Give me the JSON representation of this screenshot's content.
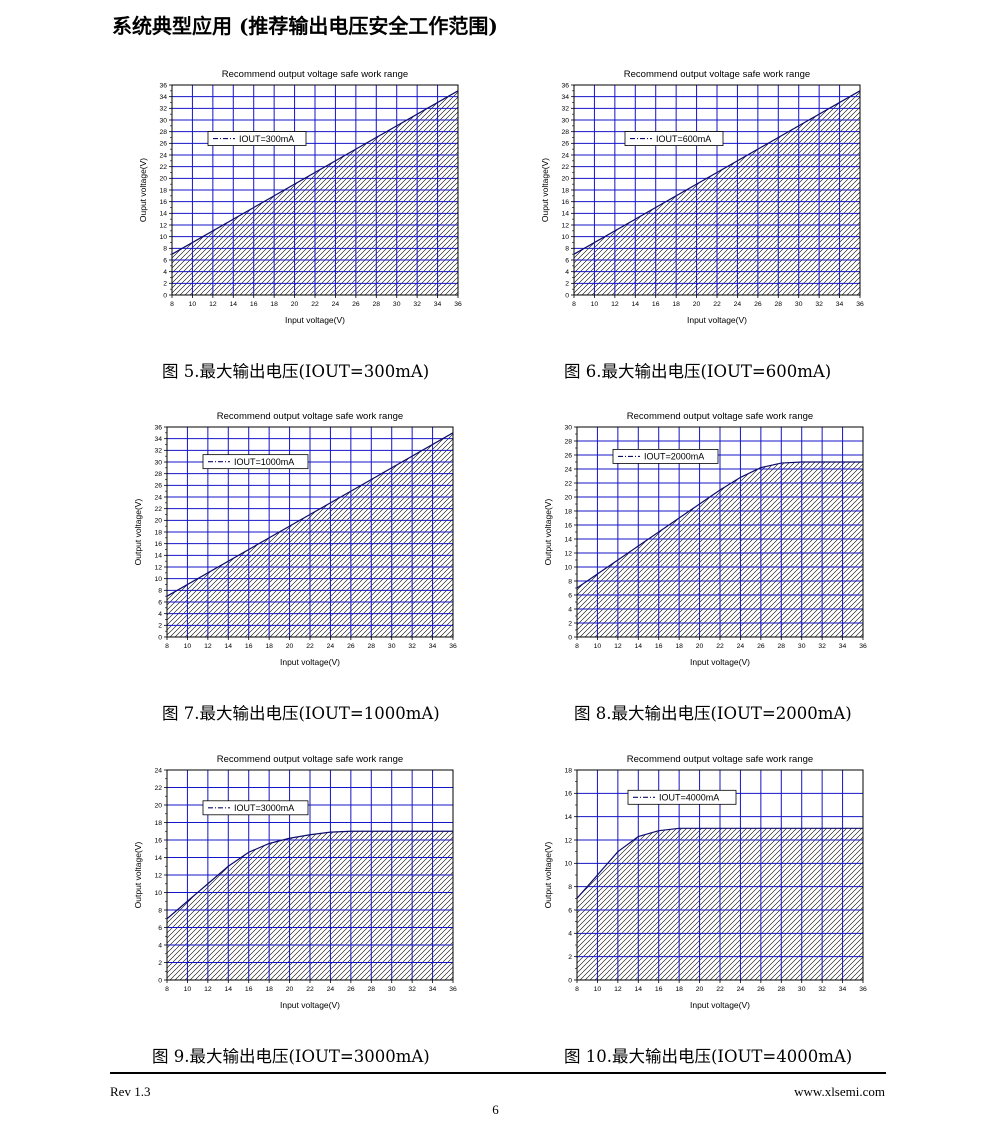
{
  "heading": "系统典型应用 (推荐输出电压安全工作范围)",
  "footer": {
    "rev": "Rev 1.3",
    "site": "www.xlsemi.com",
    "page": "6"
  },
  "chart_data": [
    {
      "type": "area",
      "title": "Recommend output voltage safe work range",
      "xlabel": "Input voltage(V)",
      "ylabel": "Ouput voltage(V)",
      "xlim": [
        8,
        36
      ],
      "ylim": [
        0,
        36
      ],
      "xticks": [
        8,
        10,
        12,
        14,
        16,
        18,
        20,
        22,
        24,
        26,
        28,
        30,
        32,
        34,
        36
      ],
      "yticks": [
        0,
        2,
        4,
        6,
        8,
        10,
        12,
        14,
        16,
        18,
        20,
        22,
        24,
        26,
        28,
        30,
        32,
        34,
        36
      ],
      "grid": true,
      "legend_position": "upper-left",
      "series": [
        {
          "name": "IOUT=300mA",
          "x": [
            8,
            36
          ],
          "y": [
            7,
            35
          ]
        }
      ],
      "caption": "图 5.最大输出电压(IOUT=300mA)"
    },
    {
      "type": "area",
      "title": "Recommend output voltage safe work range",
      "xlabel": "Input voltage(V)",
      "ylabel": "Ouput voltage(V)",
      "xlim": [
        8,
        36
      ],
      "ylim": [
        0,
        36
      ],
      "xticks": [
        8,
        10,
        12,
        14,
        16,
        18,
        20,
        22,
        24,
        26,
        28,
        30,
        32,
        34,
        36
      ],
      "yticks": [
        0,
        2,
        4,
        6,
        8,
        10,
        12,
        14,
        16,
        18,
        20,
        22,
        24,
        26,
        28,
        30,
        32,
        34,
        36
      ],
      "grid": true,
      "legend_position": "upper-center",
      "series": [
        {
          "name": "IOUT=600mA",
          "x": [
            8,
            36
          ],
          "y": [
            7,
            35
          ]
        }
      ],
      "caption": "图 6.最大输出电压(IOUT=600mA)"
    },
    {
      "type": "area",
      "title": "Recommend output voltage safe work range",
      "xlabel": "Input voltage(V)",
      "ylabel": "Output voltage(V)",
      "xlim": [
        8,
        36
      ],
      "ylim": [
        0,
        36
      ],
      "xticks": [
        8,
        10,
        12,
        14,
        16,
        18,
        20,
        22,
        24,
        26,
        28,
        30,
        32,
        34,
        36
      ],
      "yticks": [
        0,
        2,
        4,
        6,
        8,
        10,
        12,
        14,
        16,
        18,
        20,
        22,
        24,
        26,
        28,
        30,
        32,
        34,
        36
      ],
      "grid": true,
      "legend_position": "upper-left",
      "series": [
        {
          "name": "IOUT=1000mA",
          "x": [
            8,
            36
          ],
          "y": [
            7,
            35
          ]
        }
      ],
      "caption": "图 7.最大输出电压(IOUT=1000mA)"
    },
    {
      "type": "area",
      "title": "Recommend output voltage safe work range",
      "xlabel": "Input voltage(V)",
      "ylabel": "Output voltage(V)",
      "xlim": [
        8,
        36
      ],
      "ylim": [
        0,
        30
      ],
      "xticks": [
        8,
        10,
        12,
        14,
        16,
        18,
        20,
        22,
        24,
        26,
        28,
        30,
        32,
        34,
        36
      ],
      "yticks": [
        0,
        2,
        4,
        6,
        8,
        10,
        12,
        14,
        16,
        18,
        20,
        22,
        24,
        26,
        28,
        30
      ],
      "grid": true,
      "legend_position": "upper-left",
      "series": [
        {
          "name": "IOUT=2000mA",
          "x": [
            8,
            10,
            12,
            14,
            16,
            18,
            20,
            22,
            24,
            26,
            28,
            30,
            32,
            34,
            36
          ],
          "y": [
            7,
            9,
            11,
            13,
            15,
            17,
            19,
            21,
            22.8,
            24.2,
            24.85,
            25,
            25,
            25,
            25
          ]
        }
      ],
      "caption": "图 8.最大输出电压(IOUT=2000mA)"
    },
    {
      "type": "area",
      "title": "Recommend output voltage safe work range",
      "xlabel": "Input voltage(V)",
      "ylabel": "Output voltage(V)",
      "xlim": [
        8,
        36
      ],
      "ylim": [
        0,
        24
      ],
      "xticks": [
        8,
        10,
        12,
        14,
        16,
        18,
        20,
        22,
        24,
        26,
        28,
        30,
        32,
        34,
        36
      ],
      "yticks": [
        0,
        2,
        4,
        6,
        8,
        10,
        12,
        14,
        16,
        18,
        20,
        22,
        24
      ],
      "grid": true,
      "legend_position": "upper-left",
      "series": [
        {
          "name": "IOUT=3000mA",
          "x": [
            8,
            10,
            12,
            14,
            16,
            18,
            20,
            22,
            24,
            26,
            28,
            30,
            32,
            34,
            36
          ],
          "y": [
            7,
            9,
            11,
            13,
            14.6,
            15.6,
            16.2,
            16.6,
            16.9,
            17,
            17,
            17,
            17,
            17,
            17
          ]
        }
      ],
      "caption": "图 9.最大输出电压(IOUT=3000mA)"
    },
    {
      "type": "area",
      "title": "Recommend output voltage safe work range",
      "xlabel": "Input voltage(V)",
      "ylabel": "Output voltage(V)",
      "xlim": [
        8,
        36
      ],
      "ylim": [
        0,
        18
      ],
      "xticks": [
        8,
        10,
        12,
        14,
        16,
        18,
        20,
        22,
        24,
        26,
        28,
        30,
        32,
        34,
        36
      ],
      "yticks": [
        0,
        2,
        4,
        6,
        8,
        10,
        12,
        14,
        16,
        18
      ],
      "grid": true,
      "legend_position": "upper-center",
      "series": [
        {
          "name": "IOUT=4000mA",
          "x": [
            8,
            10,
            12,
            14,
            16,
            18,
            20,
            22,
            24,
            26,
            28,
            30,
            32,
            34,
            36
          ],
          "y": [
            7,
            9,
            11,
            12.3,
            12.8,
            13,
            13,
            13,
            13,
            13,
            13,
            13,
            13,
            13,
            13
          ]
        }
      ],
      "caption": "图 10.最大输出电压(IOUT=4000mA)"
    }
  ]
}
